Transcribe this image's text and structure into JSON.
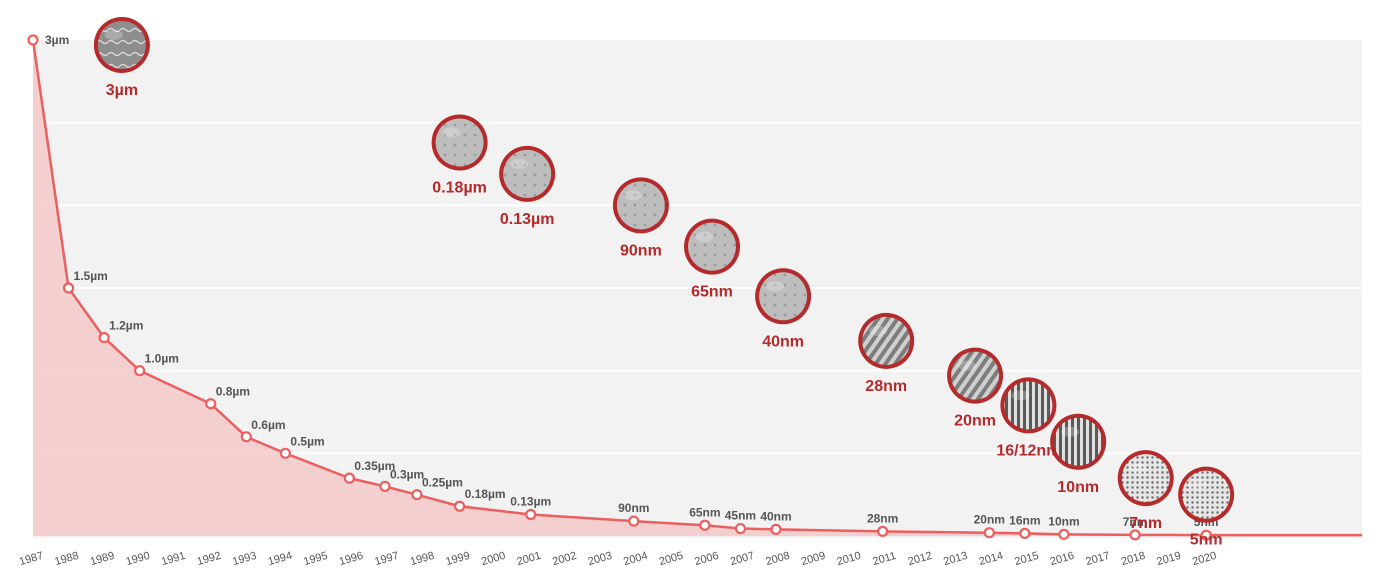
{
  "chart_data": {
    "type": "area",
    "title": "",
    "xlabel": "",
    "ylabel": "",
    "x_ticks": [
      "1987",
      "1988",
      "1989",
      "1990",
      "1991",
      "1992",
      "1993",
      "1994",
      "1995",
      "1996",
      "1997",
      "1998",
      "1999",
      "2000",
      "2001",
      "2002",
      "2003",
      "2004",
      "2005",
      "2006",
      "2007",
      "2008",
      "2009",
      "2010",
      "2011",
      "2012",
      "2013",
      "2014",
      "2015",
      "2016",
      "2017",
      "2018",
      "2019",
      "2020"
    ],
    "ylim": [
      0,
      3
    ],
    "grid": true,
    "colors": {
      "line": "#ec5f5f",
      "fill": "#f4c9c9",
      "badge_ring": "#b52a2a",
      "badge_text": "#b52a2a",
      "plot_bg": "#f2f2f2"
    },
    "series": [
      {
        "points": [
          {
            "year": 1987.0,
            "value": 3.0,
            "label": "3µm"
          },
          {
            "year": 1988.0,
            "value": 1.5,
            "label": "1.5µm"
          },
          {
            "year": 1989.0,
            "value": 1.2,
            "label": "1.2µm"
          },
          {
            "year": 1990.0,
            "value": 1.0,
            "label": "1.0µm"
          },
          {
            "year": 1992.0,
            "value": 0.8,
            "label": "0.8µm"
          },
          {
            "year": 1993.0,
            "value": 0.6,
            "label": "0.6µm"
          },
          {
            "year": 1994.1,
            "value": 0.5,
            "label": "0.5µm"
          },
          {
            "year": 1995.9,
            "value": 0.35,
            "label": "0.35µm"
          },
          {
            "year": 1996.9,
            "value": 0.3,
            "label": "0.3µm"
          },
          {
            "year": 1997.8,
            "value": 0.25,
            "label": "0.25µm"
          },
          {
            "year": 1999.0,
            "value": 0.18,
            "label": "0.18µm"
          },
          {
            "year": 2001.0,
            "value": 0.13,
            "label": "0.13µm"
          },
          {
            "year": 2003.9,
            "value": 0.09,
            "label": "90nm"
          },
          {
            "year": 2005.9,
            "value": 0.065,
            "label": "65nm"
          },
          {
            "year": 2006.9,
            "value": 0.045,
            "label": "45nm"
          },
          {
            "year": 2007.9,
            "value": 0.04,
            "label": "40nm"
          },
          {
            "year": 2010.9,
            "value": 0.028,
            "label": "28nm"
          },
          {
            "year": 2013.9,
            "value": 0.02,
            "label": "20nm"
          },
          {
            "year": 2014.9,
            "value": 0.016,
            "label": "16nm"
          },
          {
            "year": 2016.0,
            "value": 0.01,
            "label": "10nm"
          },
          {
            "year": 2018.0,
            "value": 0.007,
            "label": "7nm"
          },
          {
            "year": 2020.0,
            "value": 0.005,
            "label": "5nm"
          }
        ]
      }
    ],
    "annotations": [
      {
        "label": "3µm",
        "year": 1989.5,
        "value": 2.97,
        "icon": "wafer-cross-section"
      },
      {
        "label": "0.18µm",
        "year": 1999.0,
        "value": 2.38,
        "icon": "transistor-cross-section"
      },
      {
        "label": "0.13µm",
        "year": 2000.9,
        "value": 2.19,
        "icon": "transistor-cross-section"
      },
      {
        "label": "90nm",
        "year": 2004.1,
        "value": 2.0,
        "icon": "transistor-cross-section"
      },
      {
        "label": "65nm",
        "year": 2006.1,
        "value": 1.75,
        "icon": "transistor-cross-section"
      },
      {
        "label": "40nm",
        "year": 2008.1,
        "value": 1.45,
        "icon": "transistor-cross-section"
      },
      {
        "label": "28nm",
        "year": 2011.0,
        "value": 1.18,
        "icon": "finfet-array"
      },
      {
        "label": "20nm",
        "year": 2013.5,
        "value": 0.97,
        "icon": "finfet-array"
      },
      {
        "label": "16/12nm",
        "year": 2015.0,
        "value": 0.79,
        "icon": "fin-grid"
      },
      {
        "label": "10nm",
        "year": 2016.4,
        "value": 0.57,
        "icon": "fin-grid"
      },
      {
        "label": "7nm",
        "year": 2018.3,
        "value": 0.35,
        "icon": "dense-grid"
      },
      {
        "label": "5nm",
        "year": 2020.0,
        "value": 0.25,
        "icon": "dense-grid"
      }
    ]
  }
}
